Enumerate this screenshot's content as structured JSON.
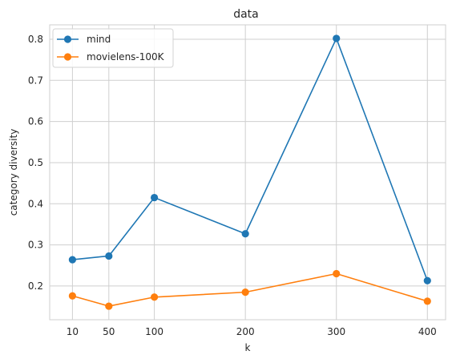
{
  "chart_data": {
    "type": "line",
    "title": "data",
    "xlabel": "k",
    "ylabel": "category diversity",
    "x": [
      10,
      50,
      100,
      200,
      300,
      400
    ],
    "xticks": [
      10,
      50,
      100,
      200,
      300,
      400
    ],
    "xlim": [
      -15,
      420
    ],
    "ylim": [
      0.118,
      0.835
    ],
    "yticks": [
      0.2,
      0.3,
      0.4,
      0.5,
      0.6,
      0.7,
      0.8
    ],
    "grid": true,
    "legend_position": "top-left",
    "series": [
      {
        "name": "mind",
        "color": "#1f77b4",
        "values": [
          0.264,
          0.273,
          0.415,
          0.327,
          0.802,
          0.213
        ]
      },
      {
        "name": "movielens-100K",
        "color": "#ff7f0e",
        "values": [
          0.176,
          0.151,
          0.173,
          0.185,
          0.23,
          0.163
        ]
      }
    ]
  }
}
